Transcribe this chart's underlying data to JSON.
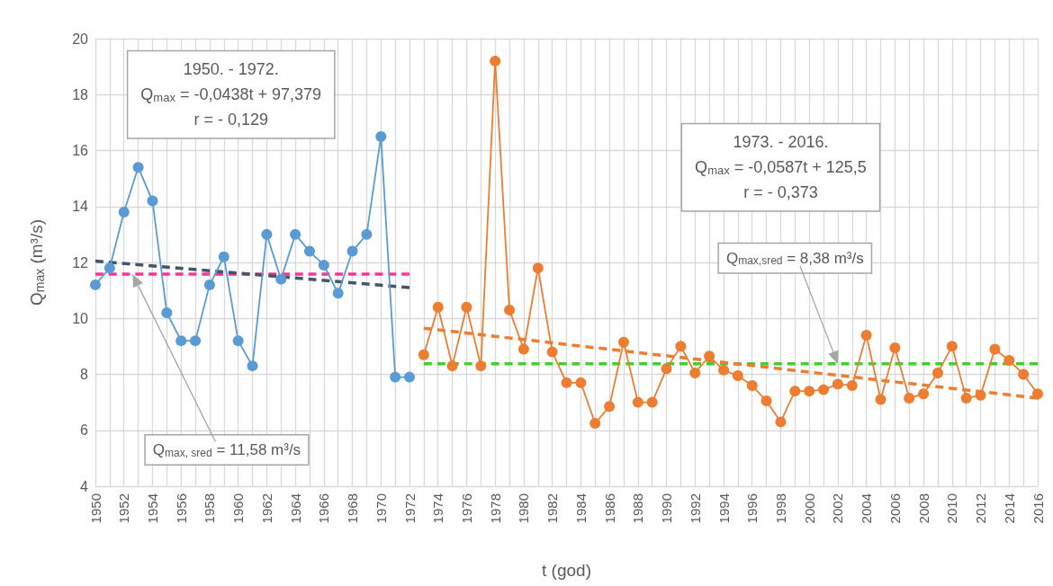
{
  "chart_data": {
    "type": "line",
    "xlabel": "t (god)",
    "ylabel": "Q$_{max}$ (m³/s)",
    "xlim": [
      1950,
      2016
    ],
    "xticks": [
      1950,
      {
        "value": 1951,
        "label": null
      },
      1952,
      {
        "value": 1953,
        "label": null
      },
      1954,
      {
        "value": 1955,
        "label": null
      },
      1956,
      {
        "value": 1957,
        "label": null
      },
      1958,
      {
        "value": 1959,
        "label": null
      },
      1960,
      {
        "value": 1961,
        "label": null
      },
      1962,
      {
        "value": 1963,
        "label": null
      },
      1964,
      {
        "value": 1965,
        "label": null
      },
      1966,
      {
        "value": 1967,
        "label": null
      },
      1968,
      {
        "value": 1969,
        "label": null
      },
      1970,
      {
        "value": 1971,
        "label": null
      },
      1972,
      {
        "value": 1973,
        "label": null
      },
      1974,
      {
        "value": 1975,
        "label": null
      },
      1976,
      {
        "value": 1977,
        "label": null
      },
      1978,
      {
        "value": 1979,
        "label": null
      },
      1980,
      {
        "value": 1981,
        "label": null
      },
      1982,
      {
        "value": 1983,
        "label": null
      },
      1984,
      {
        "value": 1985,
        "label": null
      },
      1986,
      {
        "value": 1987,
        "label": null
      },
      1988,
      {
        "value": 1989,
        "label": null
      },
      1990,
      {
        "value": 1991,
        "label": null
      },
      1992,
      {
        "value": 1993,
        "label": null
      },
      1994,
      {
        "value": 1995,
        "label": null
      },
      1996,
      {
        "value": 1997,
        "label": null
      },
      1998,
      {
        "value": 1999,
        "label": null
      },
      2000,
      {
        "value": 2001,
        "label": null
      },
      2002,
      {
        "value": 2003,
        "label": null
      },
      2004,
      {
        "value": 2005,
        "label": null
      },
      2006,
      {
        "value": 2007,
        "label": null
      },
      2008,
      {
        "value": 2009,
        "label": null
      },
      2010,
      {
        "value": 2011,
        "label": null
      },
      2012,
      {
        "value": 2013,
        "label": null
      },
      2014,
      {
        "value": 2015,
        "label": null
      },
      2016
    ],
    "ylim": [
      4,
      20
    ],
    "yticks": [
      4,
      6,
      8,
      10,
      12,
      14,
      16,
      18,
      20
    ],
    "grid": true,
    "series": [
      {
        "color": "#5b9bd5",
        "marker": "circle",
        "x": [
          1950,
          1951,
          1952,
          1953,
          1954,
          1955,
          1956,
          1957,
          1958,
          1959,
          1960,
          1961,
          1962,
          1963,
          1964,
          1965,
          1966,
          1967,
          1968,
          1969,
          1970,
          1971,
          1972
        ],
        "values": [
          11.2,
          11.8,
          13.8,
          15.4,
          14.2,
          10.2,
          9.2,
          9.2,
          11.2,
          12.2,
          9.2,
          8.3,
          13.0,
          11.4,
          13.0,
          12.4,
          11.9,
          10.9,
          12.4,
          13.0,
          16.5,
          7.9,
          7.9
        ]
      },
      {
        "color": "#ed7d31",
        "marker": "circle",
        "x": [
          1973,
          1974,
          1975,
          1976,
          1977,
          1978,
          1979,
          1980,
          1981,
          1982,
          1983,
          1984,
          1985,
          1986,
          1987,
          1988,
          1989,
          1990,
          1991,
          1992,
          1993,
          1994,
          1995,
          1996,
          1997,
          1998,
          1999,
          2000,
          2001,
          2002,
          2003,
          2004,
          2005,
          2006,
          2007,
          2008,
          2009,
          2010,
          2011,
          2012,
          2013,
          2014,
          2015,
          2016
        ],
        "values": [
          8.7,
          10.4,
          8.3,
          10.4,
          8.3,
          19.2,
          10.3,
          8.9,
          11.8,
          8.8,
          7.7,
          7.7,
          6.25,
          6.85,
          9.15,
          7.0,
          7.0,
          8.2,
          9.0,
          8.05,
          8.65,
          8.15,
          7.95,
          7.6,
          7.05,
          6.3,
          7.4,
          7.4,
          7.45,
          7.65,
          7.6,
          9.4,
          7.1,
          8.95,
          7.15,
          7.3,
          8.05,
          9.0,
          7.15,
          7.25,
          8.9,
          8.5,
          8.0,
          7.3
        ]
      },
      {
        "color": "#ff3399",
        "marker": "none",
        "line_style": "dashed",
        "x": [
          1950,
          1972
        ],
        "values": [
          11.58,
          11.58
        ]
      },
      {
        "color": "#44cc33",
        "marker": "none",
        "line_style": "dashed",
        "x": [
          1973,
          2016
        ],
        "values": [
          8.38,
          8.38
        ]
      },
      {
        "color": "#44546a",
        "marker": "none",
        "line_style": "dashed",
        "x": [
          1950,
          1972
        ],
        "values": [
          12.05,
          11.1
        ]
      },
      {
        "color": "#ed7d31",
        "marker": "none",
        "line_style": "dashed",
        "x": [
          1973,
          2016
        ],
        "values": [
          9.65,
          7.15
        ]
      }
    ],
    "annotations": [
      "1950. - 1972.\nQ$_{max}$ = -0,0438t + 97,379\nr = - 0,129",
      "1973. - 2016.\nQ$_{max}$ = -0,0587t + 125,5\nr = - 0,373",
      "Q$_{max, sred}$ = 11,58 m³/s",
      "Q$_{max,sred}$ = 8,38 m³/s"
    ]
  }
}
